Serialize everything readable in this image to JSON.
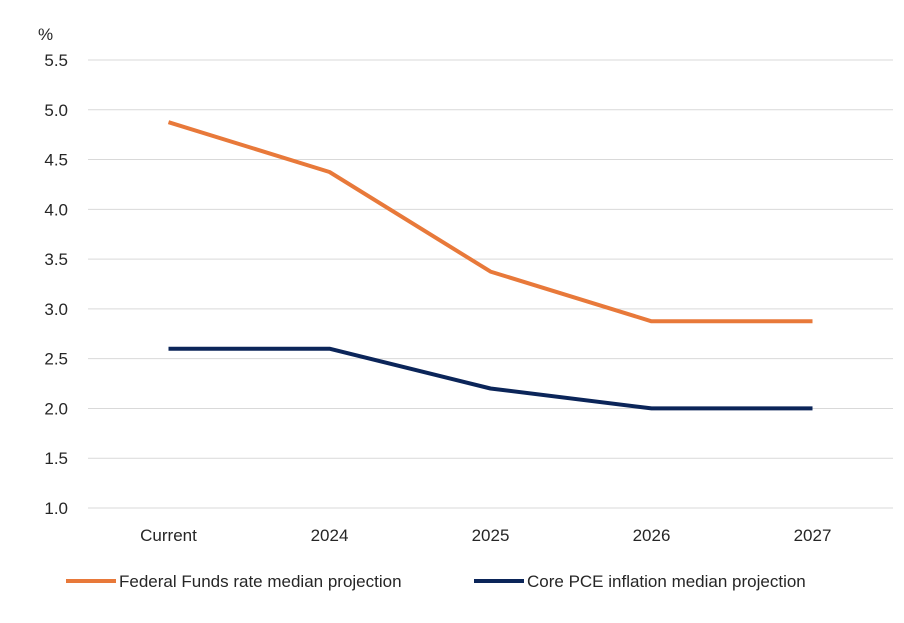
{
  "chart_data": {
    "type": "line",
    "title": "",
    "xlabel": "",
    "ylabel": "%",
    "categories": [
      "Current",
      "2024",
      "2025",
      "2026",
      "2027"
    ],
    "ylim": [
      1.0,
      5.5
    ],
    "yticks": [
      "1.0",
      "1.5",
      "2.0",
      "2.5",
      "3.0",
      "3.5",
      "4.0",
      "4.5",
      "5.0",
      "5.5"
    ],
    "grid": true,
    "legend_position": "bottom",
    "series": [
      {
        "name": "Federal Funds rate median projection",
        "color": "#E8793A",
        "values": [
          4.875,
          4.375,
          3.375,
          2.875,
          2.875
        ]
      },
      {
        "name": "Core PCE inflation median projection",
        "color": "#0B2559",
        "values": [
          2.6,
          2.6,
          2.2,
          2.0,
          2.0
        ]
      }
    ]
  }
}
